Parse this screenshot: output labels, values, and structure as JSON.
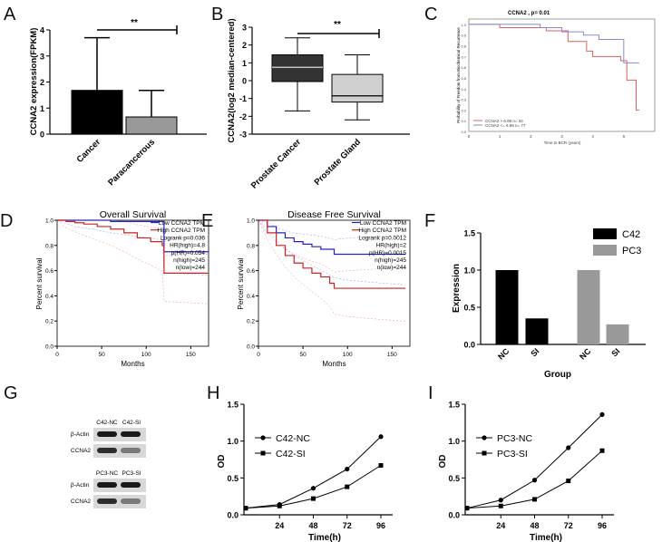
{
  "chart_data": [
    {
      "panel": "A",
      "type": "bar",
      "ylabel": "CCNA2 expression(FPKM)",
      "ylim": [
        0,
        4
      ],
      "yticks": [
        0,
        1,
        2,
        3,
        4
      ],
      "categories": [
        "Cancer",
        "Paracancerous"
      ],
      "values": [
        1.68,
        0.66
      ],
      "error_upper": [
        3.7,
        1.68
      ],
      "colors": [
        "#000000",
        "#999999"
      ],
      "sig": "**"
    },
    {
      "panel": "B",
      "type": "boxplot",
      "ylabel": "CCNA2(log2 median-centered)",
      "ylim": [
        -3,
        3
      ],
      "yticks": [
        -3,
        -2,
        -1,
        0,
        1,
        2,
        3
      ],
      "categories": [
        "Prostate Cancer",
        "Prostate Gland"
      ],
      "boxes": [
        {
          "min": -1.7,
          "q1": -0.05,
          "median": 0.75,
          "q3": 1.45,
          "max": 2.4
        },
        {
          "min": -2.2,
          "q1": -1.2,
          "median": -0.85,
          "q3": 0.35,
          "max": 1.45
        }
      ],
      "colors": [
        "#333333",
        "#d0d0d0"
      ],
      "sig": "**"
    },
    {
      "panel": "C",
      "type": "line",
      "title": "CCNA2 , p= 0.01",
      "xlabel": "Time to BCR (years)",
      "ylabel": "Probability of Freedom from Biochemical Recurrence",
      "xlim": [
        0,
        6
      ],
      "ylim": [
        0,
        1.05
      ],
      "xticks": [
        0,
        1,
        2,
        3,
        4,
        5
      ],
      "yticks": [
        0,
        0.1,
        0.2,
        0.3,
        0.4,
        0.5,
        0.6,
        0.7,
        0.8,
        0.9,
        1.0
      ],
      "series": [
        {
          "name": "CCNA2 > 6.99 n= 34",
          "color": "#d96060",
          "x": [
            0,
            0.8,
            1.0,
            2.1,
            2.5,
            3.0,
            3.2,
            3.5,
            3.8,
            4.0,
            4.4,
            4.9,
            5.1,
            5.3,
            5.4,
            5.5
          ],
          "y": [
            1.0,
            1.0,
            0.97,
            0.97,
            0.94,
            0.94,
            0.84,
            0.84,
            0.75,
            0.7,
            0.7,
            0.66,
            0.48,
            0.48,
            0.2,
            0.2
          ]
        },
        {
          "name": "CCNA2 <= 6.99 n= 77",
          "color": "#8a8ad0",
          "x": [
            0,
            2.0,
            2.3,
            2.7,
            3.0,
            3.5,
            3.7,
            4.0,
            4.2,
            4.8,
            5.0,
            5.5
          ],
          "y": [
            1.0,
            1.0,
            0.97,
            0.97,
            0.93,
            0.93,
            0.9,
            0.9,
            0.86,
            0.86,
            0.64,
            0.64
          ]
        }
      ]
    },
    {
      "panel": "D",
      "type": "line",
      "title": "Overall Survival",
      "xlabel": "Months",
      "ylabel": "Percent survival",
      "xlim": [
        0,
        170
      ],
      "ylim": [
        0,
        1.0
      ],
      "xticks": [
        0,
        50,
        100,
        150
      ],
      "yticks": [
        0,
        0.2,
        0.4,
        0.6,
        0.8,
        1.0
      ],
      "legend_text": [
        "Low CCNA2 TPM",
        "High CCNA2 TPM",
        "Logrank p=0.036",
        "HR(high)=4.8",
        "p(HR)=0.054",
        "n(high)=245",
        "n(low)=244"
      ],
      "series": [
        {
          "name": "Low CCNA2 TPM",
          "color": "#2222cc",
          "x": [
            0,
            20,
            40,
            60,
            80,
            100,
            118,
            120,
            170
          ],
          "y": [
            1.0,
            1.0,
            1.0,
            0.99,
            0.99,
            0.99,
            0.99,
            0.75,
            0.75
          ]
        },
        {
          "name": "High CCNA2 TPM",
          "color": "#cc2222",
          "x": [
            0,
            10,
            20,
            30,
            45,
            60,
            75,
            90,
            105,
            118,
            120,
            170
          ],
          "y": [
            1.0,
            0.99,
            0.98,
            0.97,
            0.95,
            0.93,
            0.9,
            0.86,
            0.83,
            0.8,
            0.58,
            0.58
          ]
        }
      ]
    },
    {
      "panel": "E",
      "type": "line",
      "title": "Disease Free Survival",
      "xlabel": "Months",
      "ylabel": "Percent survival",
      "xlim": [
        0,
        170
      ],
      "ylim": [
        0,
        1.0
      ],
      "xticks": [
        0,
        50,
        100,
        150
      ],
      "yticks": [
        0,
        0.2,
        0.4,
        0.6,
        0.8,
        1.0
      ],
      "legend_text": [
        "Low CCNA2 TPM",
        "High CCNA2 TPM",
        "Logrank p=0.0012",
        "HR(high)=2",
        "p(HR)=0.0015",
        "n(high)=245",
        "n(low)=244"
      ],
      "series": [
        {
          "name": "Low CCNA2 TPM",
          "color": "#2222cc",
          "x": [
            0,
            10,
            20,
            30,
            40,
            50,
            60,
            70,
            85,
            100,
            130,
            165
          ],
          "y": [
            1.0,
            0.95,
            0.9,
            0.86,
            0.83,
            0.81,
            0.79,
            0.77,
            0.73,
            0.73,
            0.73,
            0.73
          ]
        },
        {
          "name": "High CCNA2 TPM",
          "color": "#cc2222",
          "x": [
            0,
            10,
            20,
            30,
            40,
            50,
            60,
            70,
            80,
            85,
            100,
            130,
            165
          ],
          "y": [
            1.0,
            0.9,
            0.8,
            0.72,
            0.66,
            0.62,
            0.58,
            0.55,
            0.5,
            0.46,
            0.46,
            0.46,
            0.46
          ]
        }
      ]
    },
    {
      "panel": "F",
      "type": "bar",
      "xlabel": "Group",
      "ylabel": "Expression",
      "ylim": [
        0,
        1.5
      ],
      "yticks": [
        0.0,
        0.5,
        1.0,
        1.5
      ],
      "categories": [
        "NC",
        "SI",
        "NC",
        "SI"
      ],
      "values": [
        1.0,
        0.35,
        1.0,
        0.27
      ],
      "bar_series": [
        "C42",
        "C42",
        "PC3",
        "PC3"
      ],
      "legend": [
        {
          "name": "C42",
          "color": "#000000"
        },
        {
          "name": "PC3",
          "color": "#999999"
        }
      ]
    },
    {
      "panel": "H",
      "type": "line",
      "xlabel": "Time(h)",
      "ylabel": "OD",
      "ylim": [
        0,
        1.5
      ],
      "yticks": [
        0.0,
        0.5,
        1.0,
        1.5
      ],
      "x": [
        0,
        24,
        48,
        72,
        96
      ],
      "xticks": [
        24,
        48,
        72,
        96
      ],
      "series": [
        {
          "name": "C42-NC",
          "marker": "circle",
          "values": [
            0.09,
            0.14,
            0.36,
            0.62,
            1.06
          ]
        },
        {
          "name": "C42-SI",
          "marker": "square",
          "values": [
            0.09,
            0.12,
            0.22,
            0.38,
            0.67
          ]
        }
      ]
    },
    {
      "panel": "I",
      "type": "line",
      "xlabel": "Time(h)",
      "ylabel": "OD",
      "ylim": [
        0,
        1.5
      ],
      "yticks": [
        0.0,
        0.5,
        1.0,
        1.5
      ],
      "x": [
        0,
        24,
        48,
        72,
        96
      ],
      "xticks": [
        24,
        48,
        72,
        96
      ],
      "series": [
        {
          "name": "PC3-NC",
          "marker": "circle",
          "values": [
            0.09,
            0.2,
            0.47,
            0.91,
            1.36
          ]
        },
        {
          "name": "PC3-SI",
          "marker": "square",
          "values": [
            0.09,
            0.12,
            0.21,
            0.46,
            0.87
          ]
        }
      ]
    }
  ],
  "blot": {
    "panel": "G",
    "groups": [
      {
        "lanes": [
          "C42-NC",
          "C42-SI"
        ],
        "rows": [
          "β-Actin",
          "CCNA2"
        ]
      },
      {
        "lanes": [
          "PC3-NC",
          "PC3-SI"
        ],
        "rows": [
          "β-Actin",
          "CCNA2"
        ]
      }
    ]
  }
}
